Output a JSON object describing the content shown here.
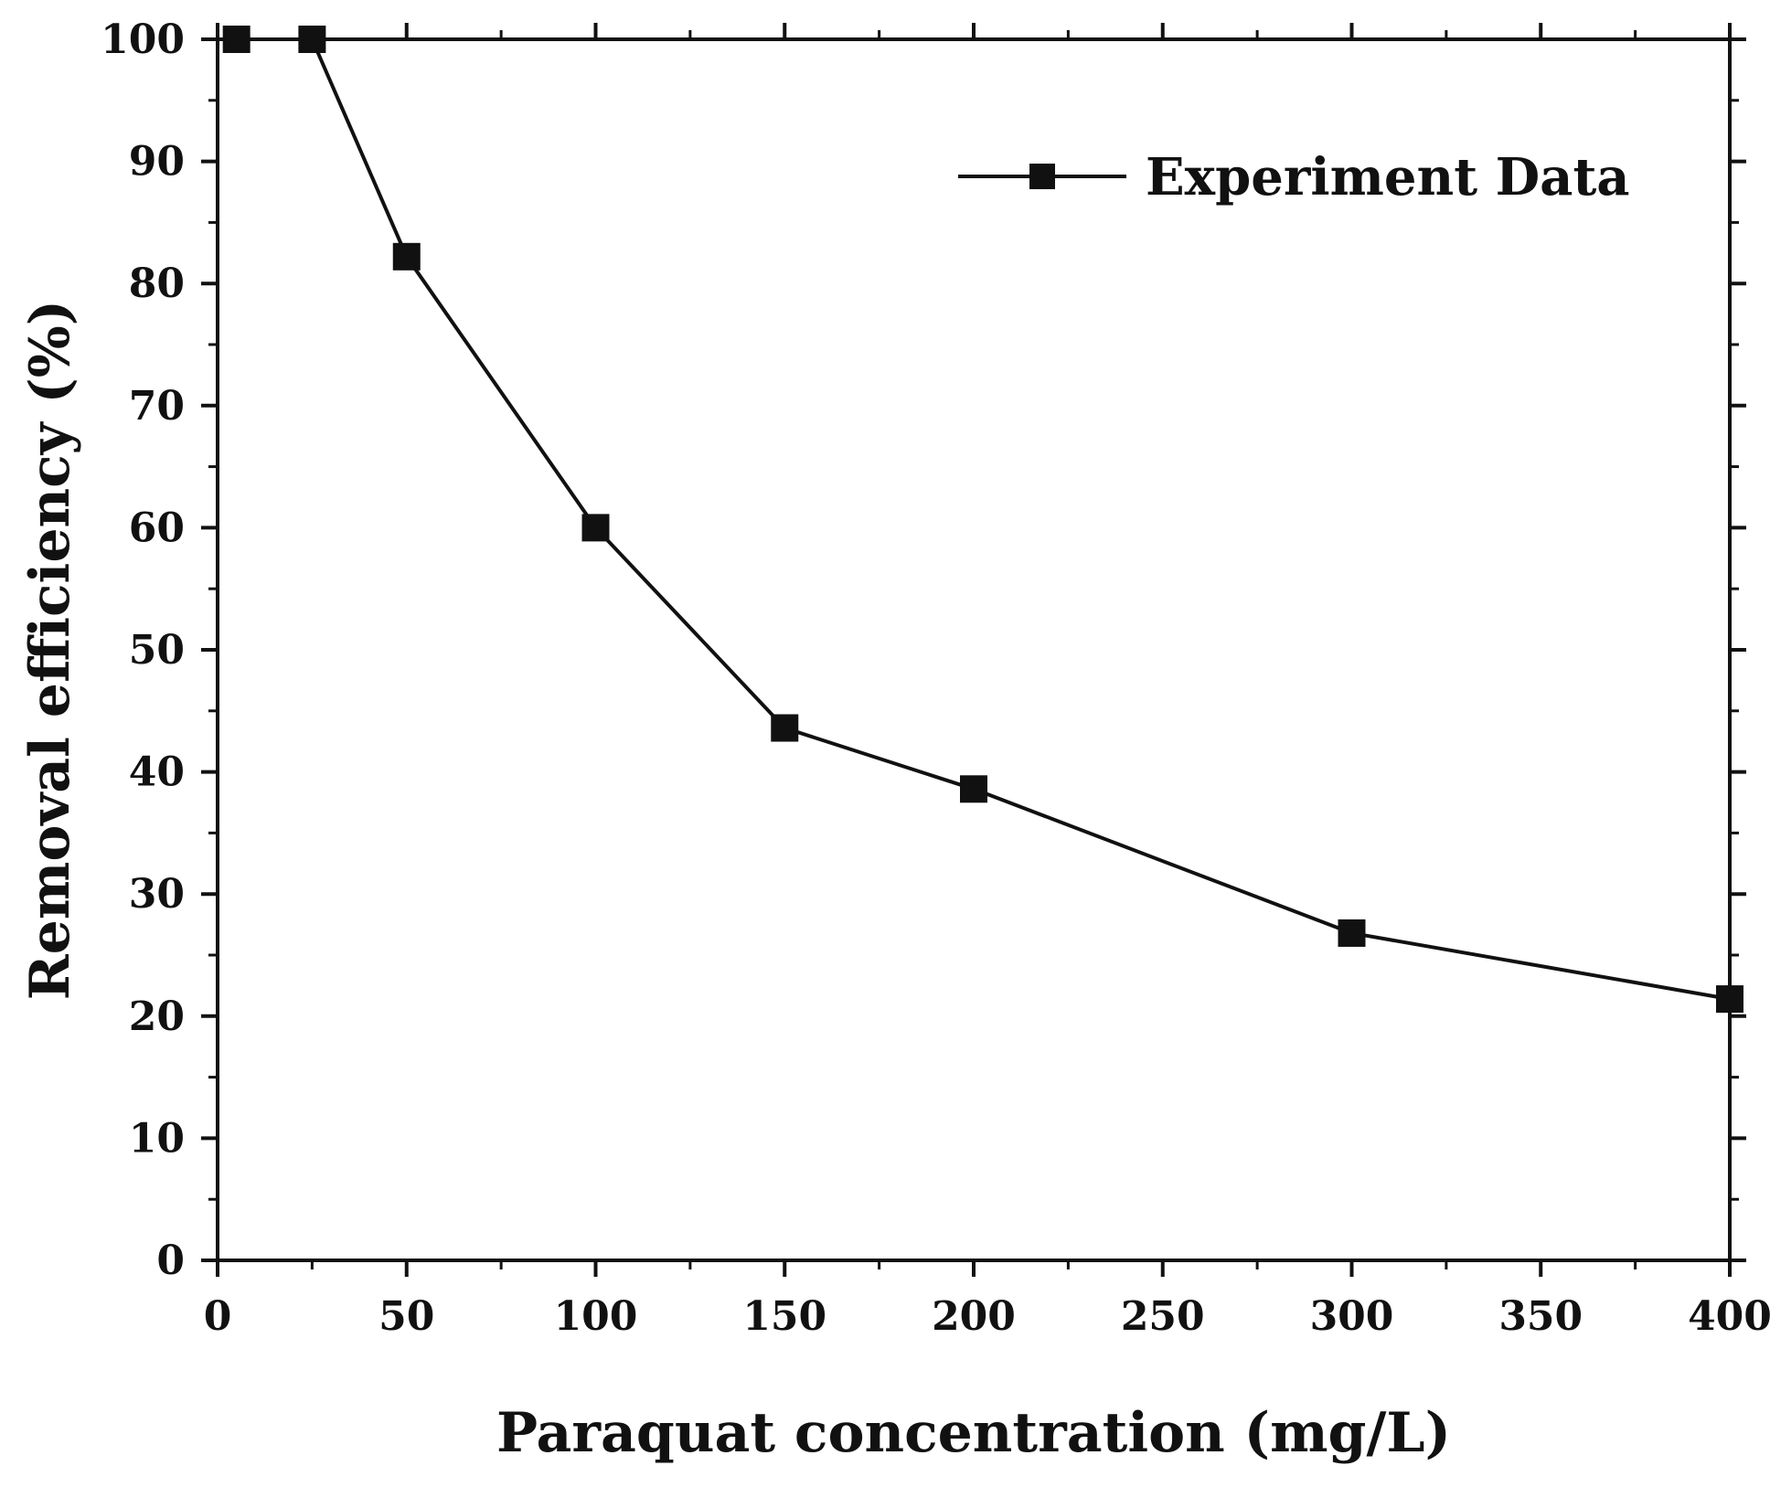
{
  "chart_data": {
    "type": "line",
    "title": "",
    "xlabel": "Paraquat concentration (mg/L)",
    "ylabel": "Removal efficiency (%)",
    "xlim": [
      0,
      400
    ],
    "ylim": [
      0,
      100
    ],
    "xticks": [
      0,
      50,
      100,
      150,
      200,
      250,
      300,
      350,
      400
    ],
    "yticks": [
      0,
      10,
      20,
      30,
      40,
      50,
      60,
      70,
      80,
      90,
      100
    ],
    "grid": false,
    "legend_position": "top-right",
    "series": [
      {
        "name": "Experiment Data",
        "marker": "square",
        "color": "#111111",
        "x": [
          5,
          25,
          50,
          100,
          150,
          200,
          300,
          400
        ],
        "y": [
          100,
          100,
          82.2,
          60.0,
          43.6,
          38.6,
          26.8,
          21.4
        ]
      }
    ]
  }
}
